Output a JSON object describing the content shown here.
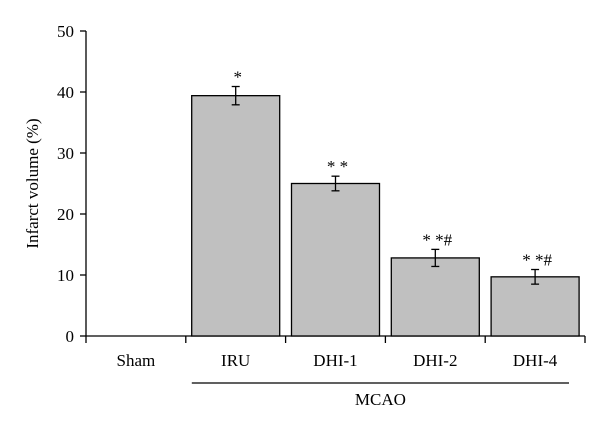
{
  "chart_data": {
    "type": "bar",
    "title": "",
    "xlabel": "",
    "ylabel": "Infarct volume (%)",
    "ylim": [
      0,
      50
    ],
    "yticks": [
      0,
      10,
      20,
      30,
      40,
      50
    ],
    "categories": [
      "Sham",
      "IRU",
      "DHI-1",
      "DHI-2",
      "DHI-4"
    ],
    "values": [
      0,
      39.4,
      25.0,
      12.8,
      9.7
    ],
    "errors": [
      0,
      1.5,
      1.2,
      1.4,
      1.2
    ],
    "significance": [
      "",
      "*",
      "* *",
      "* *#",
      "* *#"
    ],
    "group": {
      "label": "MCAO",
      "categories": [
        "IRU",
        "DHI-1",
        "DHI-2",
        "DHI-4"
      ]
    },
    "grid": false,
    "legend": "none",
    "colors": {
      "bar_fill": "#c0c0c0",
      "bar_stroke": "#000000",
      "axis": "#000000"
    }
  }
}
